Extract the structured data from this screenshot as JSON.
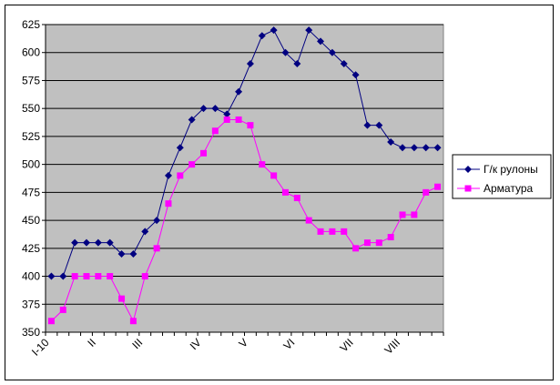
{
  "chart_data": {
    "type": "line",
    "title": "",
    "xlabel": "",
    "ylabel": "",
    "ylim": [
      350,
      625
    ],
    "yticks": [
      350,
      375,
      400,
      425,
      450,
      475,
      500,
      525,
      550,
      575,
      600,
      625
    ],
    "grid": true,
    "legend_position": "right",
    "plot_background": "#c0c0c0",
    "categories": [
      "I-10",
      "",
      "",
      "",
      "II",
      "",
      "",
      "",
      "III",
      "",
      "",
      "",
      "",
      "IV",
      "",
      "",
      "",
      "V",
      "",
      "",
      "",
      "VI",
      "",
      "",
      "",
      "",
      "VII",
      "",
      "",
      "",
      "VIII",
      "",
      "",
      ""
    ],
    "series": [
      {
        "name": "Г/к рулоны",
        "color": "#000080",
        "marker": "diamond",
        "values": [
          400,
          400,
          430,
          430,
          430,
          430,
          420,
          420,
          440,
          450,
          490,
          515,
          540,
          550,
          550,
          545,
          565,
          590,
          615,
          620,
          600,
          590,
          620,
          610,
          600,
          590,
          580,
          535,
          535,
          520,
          515,
          515,
          515,
          515
        ]
      },
      {
        "name": "Арматура",
        "color": "#ff00ff",
        "marker": "square",
        "values": [
          360,
          370,
          400,
          400,
          400,
          400,
          380,
          360,
          400,
          425,
          465,
          490,
          500,
          510,
          530,
          540,
          540,
          535,
          500,
          490,
          475,
          470,
          450,
          440,
          440,
          440,
          425,
          430,
          430,
          435,
          455,
          455,
          475,
          480
        ]
      }
    ]
  }
}
